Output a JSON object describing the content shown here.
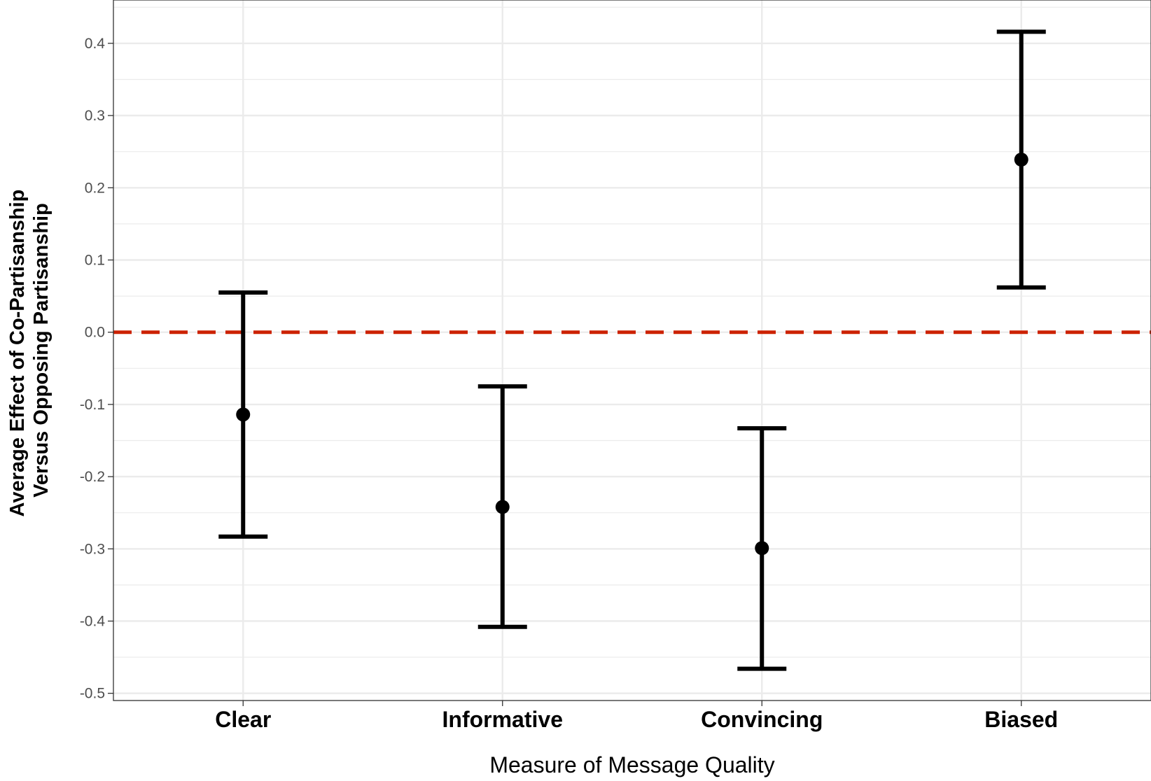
{
  "chart_data": {
    "type": "errorbar",
    "title": "",
    "xlabel": "Measure of Message Quality",
    "ylabel_lines": [
      "Average Effect of Co-Partisanship",
      "Versus Opposing Partisanship"
    ],
    "categories": [
      "Clear",
      "Informative",
      "Convincing",
      "Biased"
    ],
    "estimates": [
      -0.114,
      -0.242,
      -0.299,
      0.239
    ],
    "lower": [
      -0.283,
      -0.408,
      -0.466,
      0.062
    ],
    "upper": [
      0.055,
      -0.075,
      -0.133,
      0.416
    ],
    "ylim": [
      -0.51,
      0.46
    ],
    "yticks": [
      -0.5,
      -0.4,
      -0.3,
      -0.2,
      -0.1,
      0.0,
      0.1,
      0.2,
      0.3,
      0.4
    ],
    "ytick_labels": [
      "-0.5",
      "-0.4",
      "-0.3",
      "-0.2",
      "-0.1",
      "0.0",
      "0.1",
      "0.2",
      "0.3",
      "0.4"
    ],
    "reference_line": {
      "y": 0.0,
      "style": "dashed",
      "color": "#cc2200"
    },
    "grid": true,
    "colors": {
      "marker": "#000000",
      "grid": "#ebebeb",
      "axis_text": "#4d4d4d",
      "panel_border": "#333333"
    }
  }
}
